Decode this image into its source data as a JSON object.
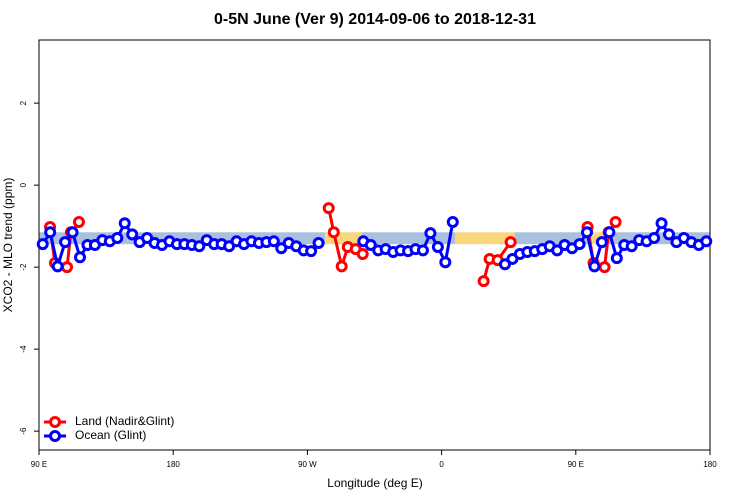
{
  "chart_data": {
    "type": "line",
    "title": "0-5N June (Ver 9)   2014-09-06 to 2018-12-31",
    "x_label": "Longitude (deg E)",
    "y_label": "XCO2 - MLO trend (ppm)",
    "xlim": [
      90,
      540
    ],
    "xticks": [
      {
        "value": 90,
        "label": "90 E"
      },
      180,
      {
        "value": 270,
        "label": "90 W"
      },
      {
        "value": 360,
        "label": "0"
      },
      {
        "value": 450,
        "label": "90 E"
      },
      {
        "value": 540,
        "label": "180"
      }
    ],
    "ylim": [
      -6.46,
      3.54
    ],
    "yticks": [
      -6,
      -4,
      -2,
      0,
      2
    ],
    "legend": "bottom-left",
    "bands": [
      {
        "x": [
          90,
          282
        ],
        "y": [
          -1.44,
          -1.15
        ],
        "color": "#a9c0de"
      },
      {
        "x": [
          282,
          306.5
        ],
        "y": [
          -1.44,
          -1.15
        ],
        "color": "#f9d67e"
      },
      {
        "x": [
          306.5,
          369
        ],
        "y": [
          -1.44,
          -1.15
        ],
        "color": "#a9c0de"
      },
      {
        "x": [
          369,
          409
        ],
        "y": [
          -1.44,
          -1.15
        ],
        "color": "#f9d67e"
      },
      {
        "x": [
          409,
          459
        ],
        "y": [
          -1.44,
          -1.15
        ],
        "color": "#a9c0de"
      },
      {
        "x": [
          459,
          469
        ],
        "y": [
          -1.44,
          -1.15
        ],
        "color": "#f9d67e"
      },
      {
        "x": [
          469,
          540
        ],
        "y": [
          -1.44,
          -1.15
        ],
        "color": "#a9c0de"
      }
    ],
    "series": [
      {
        "name": "Land (Nadir&Glint)",
        "color": "#ff0000",
        "x": [
          97.4,
          100.7,
          108.8,
          111.4,
          116.8,
          null,
          284.3,
          287.7,
          293.0,
          297.1,
          302.4,
          307.1,
          null,
          388.2,
          392.2,
          397.6,
          406.3,
          null,
          457.9,
          461.9,
          469.3,
          472.0,
          476.7
        ],
        "values": [
          -1.02,
          -1.9,
          -2.0,
          -1.15,
          -0.9,
          null,
          -0.56,
          -1.15,
          -1.98,
          -1.51,
          -1.56,
          -1.68,
          null,
          -2.34,
          -1.8,
          -1.83,
          -1.39,
          null,
          -1.02,
          -1.9,
          -2.0,
          -1.15,
          -0.9
        ]
      },
      {
        "name": "Ocean (Glint)",
        "color": "#0000ff",
        "x": [
          92.5,
          97.5,
          102.5,
          107.5,
          112.5,
          117.5,
          122.5,
          127.5,
          132.5,
          137.5,
          142.5,
          147.5,
          152.5,
          157.5,
          162.5,
          167.5,
          172.5,
          177.5,
          182.5,
          187.5,
          192.5,
          197.5,
          202.5,
          207.5,
          212.5,
          217.5,
          222.5,
          227.5,
          232.5,
          237.5,
          242.5,
          247.5,
          252.5,
          257.5,
          262.5,
          267.5,
          272.5,
          277.5,
          null,
          307.5,
          312.5,
          317.5,
          322.5,
          327.5,
          332.5,
          337.5,
          342.5,
          347.5,
          352.5,
          357.5,
          362.5,
          367.5,
          null,
          402.5,
          407.5,
          412.5,
          417.5,
          422.5,
          427.5,
          432.5,
          437.5,
          442.5,
          447.5,
          452.5,
          457.5,
          462.5,
          467.5,
          472.5,
          477.5,
          482.5,
          487.5,
          492.5,
          497.5,
          502.5,
          507.5,
          512.5,
          517.5,
          522.5,
          527.5,
          532.5,
          537.5
        ],
        "values": [
          -1.44,
          -1.15,
          -1.98,
          -1.39,
          -1.15,
          -1.76,
          -1.46,
          -1.46,
          -1.34,
          -1.37,
          -1.29,
          -0.93,
          -1.2,
          -1.39,
          -1.29,
          -1.41,
          -1.46,
          -1.37,
          -1.44,
          -1.44,
          -1.46,
          -1.49,
          -1.34,
          -1.44,
          -1.44,
          -1.49,
          -1.37,
          -1.44,
          -1.37,
          -1.41,
          -1.39,
          -1.37,
          -1.54,
          -1.41,
          -1.49,
          -1.59,
          -1.61,
          -1.41,
          null,
          -1.37,
          -1.46,
          -1.59,
          -1.56,
          -1.63,
          -1.59,
          -1.61,
          -1.56,
          -1.59,
          -1.17,
          -1.51,
          -1.88,
          -0.9,
          null,
          -1.93,
          -1.8,
          -1.68,
          -1.63,
          -1.61,
          -1.56,
          -1.49,
          -1.59,
          -1.46,
          -1.54,
          -1.44,
          -1.15,
          -1.98,
          -1.39,
          -1.15,
          -1.78,
          -1.46,
          -1.49,
          -1.34,
          -1.37,
          -1.29,
          -0.93,
          -1.2,
          -1.39,
          -1.29,
          -1.39,
          -1.46,
          -1.37
        ]
      }
    ]
  }
}
